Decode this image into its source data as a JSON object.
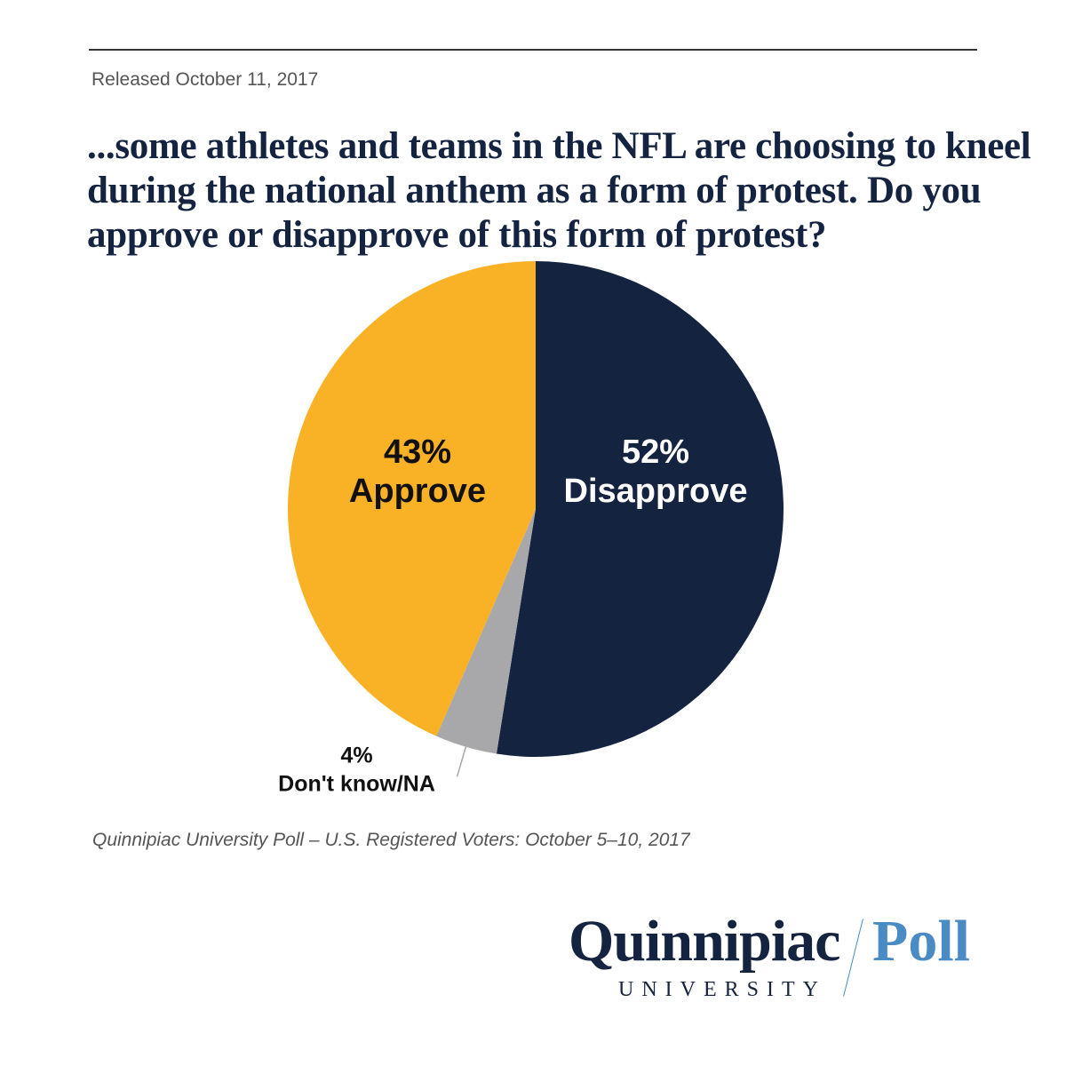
{
  "header": {
    "released": "Released October 11, 2017"
  },
  "question_lines": [
    "...some athletes and teams in the NFL are choosing to kneel",
    "during the national anthem as a form of protest.  Do you",
    "approve or disapprove of this form of protest?"
  ],
  "chart_data": {
    "type": "pie",
    "title": "...some athletes and teams in the NFL are choosing to kneel during the national anthem as a form of protest.  Do you approve or disapprove of this form of protest?",
    "slices": [
      {
        "label": "Disapprove",
        "value": 52,
        "value_label": "52%",
        "color": "#14233f",
        "text_color": "#ffffff"
      },
      {
        "label": "Don't know/NA",
        "value": 4,
        "value_label": "4%",
        "color": "#a8a8aa",
        "text_color": "#111111"
      },
      {
        "label": "Approve",
        "value": 43,
        "value_label": "43%",
        "color": "#f9b125",
        "text_color": "#111111"
      }
    ],
    "start": "12 o'clock",
    "direction": "clockwise"
  },
  "footer": {
    "source": "Quinnipiac University Poll – U.S. Registered Voters: October 5–10, 2017"
  },
  "logo": {
    "name": "Quinnipiac",
    "poll": "Poll",
    "university": "UNIVERSITY",
    "primary_color": "#14233f",
    "accent_color": "#4a8bc4"
  }
}
